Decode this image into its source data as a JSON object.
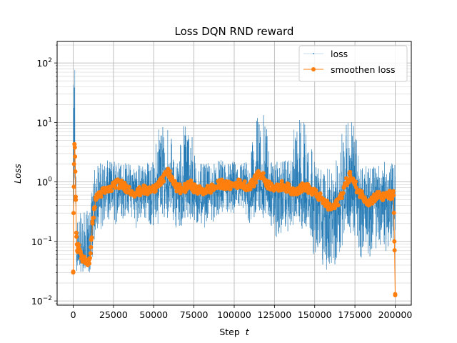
{
  "chart_data": {
    "type": "line",
    "title": "Loss DQN RND reward",
    "xlabel_text": "Step",
    "xlabel_var": "t",
    "ylabel": "Loss",
    "y_scale": "log",
    "xlim": [
      -10000,
      210000
    ],
    "ylim": [
      0.0085,
      230
    ],
    "x_ticks": [
      0,
      25000,
      50000,
      75000,
      100000,
      125000,
      150000,
      175000,
      200000
    ],
    "y_ticks": [
      {
        "value": 0.01,
        "label_base": "10",
        "label_exp": "−2"
      },
      {
        "value": 0.1,
        "label_base": "10",
        "label_exp": "−1"
      },
      {
        "value": 1,
        "label_base": "10",
        "label_exp": "0"
      },
      {
        "value": 10,
        "label_base": "10",
        "label_exp": "1"
      },
      {
        "value": 100,
        "label_base": "10",
        "label_exp": "2"
      }
    ],
    "grid": "major and minor",
    "legend_position": "top-right",
    "series": [
      {
        "name": "loss",
        "style": "thin line with point markers",
        "color": "#1f77b4",
        "x": [
          0,
          1000,
          2000,
          3000,
          5000,
          8000,
          10000,
          12000,
          14000,
          17000,
          20000,
          25000,
          30000,
          35000,
          40000,
          45000,
          50000,
          53000,
          56000,
          60000,
          62000,
          65000,
          68000,
          70000,
          73000,
          76000,
          80000,
          85000,
          90000,
          95000,
          100000,
          105000,
          110000,
          113000,
          116000,
          120000,
          123000,
          127000,
          130000,
          135000,
          138000,
          142000,
          146000,
          150000,
          155000,
          160000,
          163000,
          167000,
          170000,
          174000,
          178000,
          183000,
          188000,
          193000,
          197000,
          200000
        ],
        "y_median": [
          0.2,
          5,
          0.06,
          0.06,
          0.06,
          0.05,
          0.05,
          0.3,
          0.6,
          0.7,
          0.7,
          0.85,
          0.9,
          0.85,
          0.7,
          0.8,
          0.75,
          0.9,
          1.0,
          1.1,
          0.9,
          0.7,
          0.6,
          0.75,
          0.7,
          0.6,
          0.55,
          0.6,
          0.7,
          0.75,
          0.8,
          0.75,
          0.7,
          0.8,
          0.9,
          0.75,
          0.7,
          0.6,
          0.7,
          0.6,
          0.7,
          0.65,
          0.6,
          0.5,
          0.3,
          0.25,
          0.35,
          0.6,
          0.85,
          0.65,
          0.5,
          0.45,
          0.5,
          0.55,
          0.5,
          0.55
        ],
        "y_low": [
          0.01,
          1,
          0.03,
          0.03,
          0.03,
          0.03,
          0.025,
          0.05,
          0.12,
          0.15,
          0.15,
          0.15,
          0.2,
          0.25,
          0.15,
          0.2,
          0.15,
          0.2,
          0.22,
          0.25,
          0.2,
          0.15,
          0.15,
          0.2,
          0.15,
          0.15,
          0.15,
          0.2,
          0.2,
          0.25,
          0.2,
          0.25,
          0.15,
          0.2,
          0.25,
          0.2,
          0.15,
          0.08,
          0.12,
          0.15,
          0.15,
          0.12,
          0.1,
          0.05,
          0.03,
          0.02,
          0.03,
          0.08,
          0.12,
          0.1,
          0.05,
          0.05,
          0.06,
          0.07,
          0.05,
          0.06
        ],
        "y_high": [
          40,
          150,
          0.3,
          0.3,
          0.3,
          0.35,
          0.3,
          1.2,
          2.0,
          2.2,
          2.3,
          2.3,
          2.3,
          2.1,
          2.0,
          2.2,
          2.2,
          12,
          12,
          12,
          2.5,
          2.3,
          11,
          11,
          11,
          2.2,
          2.0,
          2.1,
          2.3,
          2.4,
          2.3,
          2.2,
          2.3,
          13.5,
          13.5,
          13.5,
          2.3,
          2.2,
          2.3,
          2.3,
          12.5,
          12.5,
          12.5,
          2.0,
          1.8,
          1.6,
          2.0,
          12.5,
          12.5,
          12.5,
          2.0,
          1.8,
          2.0,
          2.2,
          2.0,
          2.3
        ]
      },
      {
        "name": "smoothen loss",
        "style": "line with circle markers",
        "color": "#ff7f0e",
        "x": [
          0,
          200,
          500,
          800,
          1000,
          1300,
          1600,
          2000,
          2500,
          3000,
          4000,
          5000,
          6000,
          7000,
          8000,
          9000,
          10000,
          11000,
          12000,
          13000,
          14000,
          15000,
          17000,
          20000,
          23000,
          26000,
          30000,
          33000,
          36000,
          40000,
          43000,
          46000,
          50000,
          53000,
          56000,
          58000,
          60000,
          62000,
          64000,
          67000,
          70000,
          73000,
          76000,
          80000,
          84000,
          88000,
          92000,
          96000,
          100000,
          104000,
          108000,
          112000,
          115000,
          118000,
          121000,
          124000,
          127000,
          130000,
          133000,
          136000,
          140000,
          144000,
          148000,
          152000,
          156000,
          160000,
          163000,
          166000,
          169000,
          172000,
          175000,
          178000,
          181000,
          184000,
          187000,
          190000,
          193000,
          196000,
          198000,
          199000,
          199500,
          200000
        ],
        "y": [
          0.03,
          0.3,
          2.0,
          4.3,
          3.8,
          1.5,
          0.5,
          0.12,
          0.07,
          0.08,
          0.07,
          0.06,
          0.05,
          0.055,
          0.045,
          0.04,
          0.05,
          0.08,
          0.2,
          0.35,
          0.5,
          0.6,
          0.65,
          0.7,
          0.75,
          0.95,
          0.9,
          0.8,
          0.7,
          0.65,
          0.75,
          0.7,
          0.75,
          1.0,
          1.05,
          1.45,
          1.35,
          1.0,
          0.8,
          0.75,
          0.8,
          0.9,
          0.75,
          0.7,
          0.75,
          0.8,
          0.95,
          0.85,
          0.9,
          0.95,
          0.85,
          0.95,
          1.4,
          1.2,
          0.9,
          0.85,
          0.75,
          0.9,
          0.8,
          0.7,
          0.75,
          0.85,
          0.7,
          0.6,
          0.45,
          0.35,
          0.4,
          0.55,
          0.9,
          1.3,
          0.9,
          0.65,
          0.55,
          0.45,
          0.55,
          0.6,
          0.55,
          0.6,
          0.6,
          0.6,
          0.1,
          0.013
        ]
      }
    ]
  }
}
